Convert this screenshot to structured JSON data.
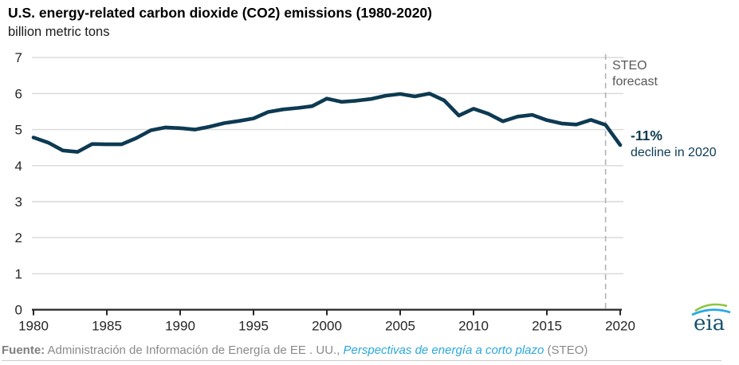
{
  "header": {
    "title": "U.S. energy-related carbon dioxide (CO2) emissions (1980-2020)",
    "subtitle": "billion metric tons"
  },
  "chart_data": {
    "type": "line",
    "title": "U.S. energy-related carbon dioxide (CO2) emissions (1980-2020)",
    "ylabel": "billion metric tons",
    "xlabel": "",
    "x": [
      1980,
      1981,
      1982,
      1983,
      1984,
      1985,
      1986,
      1987,
      1988,
      1989,
      1990,
      1991,
      1992,
      1993,
      1994,
      1995,
      1996,
      1997,
      1998,
      1999,
      2000,
      2001,
      2002,
      2003,
      2004,
      2005,
      2006,
      2007,
      2008,
      2009,
      2010,
      2011,
      2012,
      2013,
      2014,
      2015,
      2016,
      2017,
      2018,
      2019,
      2020
    ],
    "values": [
      4.78,
      4.64,
      4.42,
      4.38,
      4.6,
      4.59,
      4.59,
      4.76,
      4.98,
      5.06,
      5.04,
      5.0,
      5.08,
      5.18,
      5.24,
      5.31,
      5.49,
      5.56,
      5.6,
      5.65,
      5.86,
      5.77,
      5.8,
      5.85,
      5.94,
      5.99,
      5.92,
      6.0,
      5.81,
      5.39,
      5.58,
      5.44,
      5.23,
      5.36,
      5.41,
      5.26,
      5.17,
      5.14,
      5.27,
      5.13,
      4.57
    ],
    "xlim": [
      1980,
      2020
    ],
    "ylim": [
      0,
      7
    ],
    "xticks": [
      1980,
      1985,
      1990,
      1995,
      2000,
      2005,
      2010,
      2015,
      2020
    ],
    "yticks": [
      0,
      1,
      2,
      3,
      4,
      5,
      6,
      7
    ],
    "grid": "horizontal",
    "legend": "none",
    "forecast_divider_x": 2019,
    "annotations": {
      "steo_line1": "STEO",
      "steo_line2": "forecast",
      "decline_pct": "-11%",
      "decline_label": "decline in 2020"
    }
  },
  "footer": {
    "fuente_label": "Fuente:",
    "source_text": " Administración de Información de Energía de EE . UU., ",
    "link_text": "Perspectivas de energía a corto plazo",
    "suffix": " (STEO)"
  },
  "logo": {
    "text": "eia"
  },
  "colors": {
    "line": "#0d3a52",
    "grid": "#d9d9d9",
    "dashed_divider": "#b3b3b3",
    "axis": "#262626",
    "tick_label": "#262626",
    "annotation_gray": "#595959",
    "annotation_navy": "#0d3a52",
    "link_blue": "#2aa7dd",
    "footer_gray": "#8a8a8a",
    "logo_navy": "#15516e",
    "logo_green": "#8dc63f",
    "logo_blue": "#29abe2"
  }
}
